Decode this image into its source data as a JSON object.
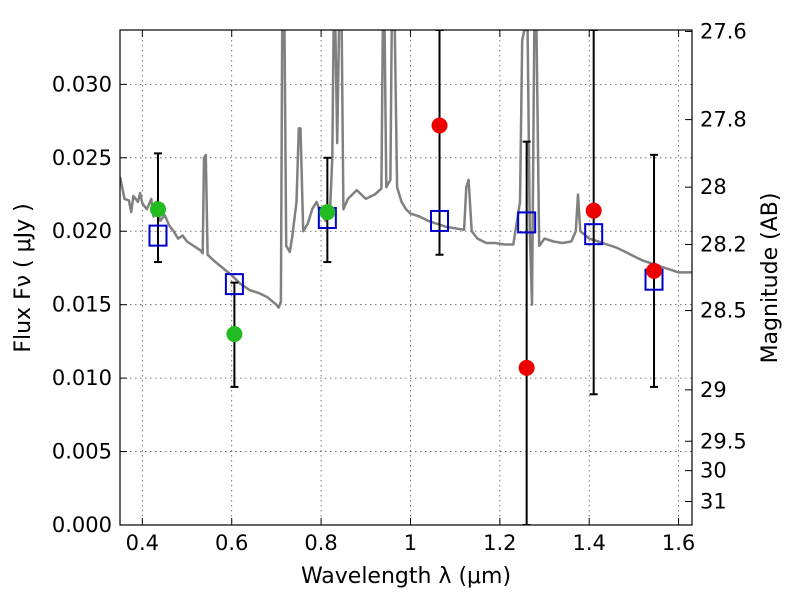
{
  "chart_data": {
    "type": "scatter",
    "xlabel": "Wavelength  λ (μm)",
    "ylabel": "Flux  Fν  ( μJy )",
    "y2label": "Magnitude (AB)",
    "xlim": [
      0.35,
      1.63
    ],
    "ylim": [
      0.0,
      0.0337
    ],
    "grid": true,
    "x_ticks": [
      0.4,
      0.6,
      0.8,
      1.0,
      1.2,
      1.4,
      1.6
    ],
    "x_tick_labels": [
      "0.4",
      "0.6",
      "0.8",
      "1",
      "1.2",
      "1.4",
      "1.6"
    ],
    "y_ticks": [
      0.0,
      0.005,
      0.01,
      0.015,
      0.02,
      0.025,
      0.03
    ],
    "y_tick_labels": [
      "0.000",
      "0.005",
      "0.010",
      "0.015",
      "0.020",
      "0.025",
      "0.030"
    ],
    "y2_ticks": [
      {
        "label": "27.6",
        "flux": 0.0336
      },
      {
        "label": "27.8",
        "flux": 0.0276
      },
      {
        "label": "28",
        "flux": 0.023
      },
      {
        "label": "28.2",
        "flux": 0.0191
      },
      {
        "label": "28.5",
        "flux": 0.0146
      },
      {
        "label": "29",
        "flux": 0.0092
      },
      {
        "label": "29.5",
        "flux": 0.0057
      },
      {
        "label": "30",
        "flux": 0.0037
      },
      {
        "label": "31",
        "flux": 0.0016
      }
    ],
    "colors": {
      "spectrum": "#808080",
      "detected": "#22bb22",
      "measured": "#ee0000",
      "model": "#0000cc",
      "errorbar": "#000000",
      "grid": "#555555"
    },
    "errorbars": [
      {
        "x": 0.435,
        "low": 0.0179,
        "high": 0.0253
      },
      {
        "x": 0.606,
        "low": 0.0094,
        "high": 0.0165
      },
      {
        "x": 0.814,
        "low": 0.0179,
        "high": 0.025
      },
      {
        "x": 1.065,
        "low": 0.0184,
        "high": 0.0337
      },
      {
        "x": 1.26,
        "low": 0.0,
        "high": 0.0261
      },
      {
        "x": 1.41,
        "low": 0.0089,
        "high": 0.0337
      },
      {
        "x": 1.545,
        "low": 0.0094,
        "high": 0.0252
      }
    ],
    "green_points": [
      {
        "x": 0.435,
        "y": 0.0215
      },
      {
        "x": 0.606,
        "y": 0.013
      },
      {
        "x": 0.814,
        "y": 0.0213
      }
    ],
    "red_points": [
      {
        "x": 1.065,
        "y": 0.0272
      },
      {
        "x": 1.26,
        "y": 0.0107
      },
      {
        "x": 1.41,
        "y": 0.0214
      },
      {
        "x": 1.545,
        "y": 0.0173
      }
    ],
    "model_squares": [
      {
        "x": 0.435,
        "y": 0.0197
      },
      {
        "x": 0.606,
        "y": 0.0164
      },
      {
        "x": 0.814,
        "y": 0.0209
      },
      {
        "x": 1.065,
        "y": 0.0207
      },
      {
        "x": 1.26,
        "y": 0.0206
      },
      {
        "x": 1.41,
        "y": 0.0198
      },
      {
        "x": 1.545,
        "y": 0.0167
      }
    ],
    "spectrum": [
      [
        0.35,
        0.0237
      ],
      [
        0.355,
        0.023
      ],
      [
        0.36,
        0.0222
      ],
      [
        0.37,
        0.0221
      ],
      [
        0.375,
        0.0213
      ],
      [
        0.38,
        0.0224
      ],
      [
        0.39,
        0.022
      ],
      [
        0.395,
        0.0226
      ],
      [
        0.4,
        0.0219
      ],
      [
        0.41,
        0.0215
      ],
      [
        0.42,
        0.0222
      ],
      [
        0.425,
        0.021
      ],
      [
        0.43,
        0.022
      ],
      [
        0.44,
        0.0207
      ],
      [
        0.45,
        0.0211
      ],
      [
        0.46,
        0.0204
      ],
      [
        0.47,
        0.02
      ],
      [
        0.48,
        0.0195
      ],
      [
        0.49,
        0.0197
      ],
      [
        0.5,
        0.0193
      ],
      [
        0.51,
        0.0191
      ],
      [
        0.52,
        0.0189
      ],
      [
        0.53,
        0.0187
      ],
      [
        0.535,
        0.0185
      ],
      [
        0.538,
        0.025
      ],
      [
        0.542,
        0.0252
      ],
      [
        0.546,
        0.0184
      ],
      [
        0.56,
        0.018
      ],
      [
        0.58,
        0.0175
      ],
      [
        0.6,
        0.017
      ],
      [
        0.62,
        0.0164
      ],
      [
        0.64,
        0.016
      ],
      [
        0.66,
        0.0158
      ],
      [
        0.68,
        0.0155
      ],
      [
        0.7,
        0.015
      ],
      [
        0.705,
        0.0148
      ],
      [
        0.71,
        0.0152
      ],
      [
        0.713,
        0.0337
      ],
      [
        0.718,
        0.0337
      ],
      [
        0.722,
        0.019
      ],
      [
        0.73,
        0.0186
      ],
      [
        0.735,
        0.0195
      ],
      [
        0.745,
        0.022
      ],
      [
        0.75,
        0.027
      ],
      [
        0.754,
        0.027
      ],
      [
        0.76,
        0.02
      ],
      [
        0.77,
        0.0205
      ],
      [
        0.78,
        0.0215
      ],
      [
        0.79,
        0.022
      ],
      [
        0.8,
        0.0212
      ],
      [
        0.81,
        0.0207
      ],
      [
        0.82,
        0.0213
      ],
      [
        0.825,
        0.025
      ],
      [
        0.828,
        0.0337
      ],
      [
        0.832,
        0.0337
      ],
      [
        0.836,
        0.026
      ],
      [
        0.84,
        0.0337
      ],
      [
        0.846,
        0.0337
      ],
      [
        0.85,
        0.0215
      ],
      [
        0.86,
        0.0222
      ],
      [
        0.88,
        0.0228
      ],
      [
        0.9,
        0.0222
      ],
      [
        0.92,
        0.0225
      ],
      [
        0.935,
        0.0229
      ],
      [
        0.938,
        0.0337
      ],
      [
        0.942,
        0.0337
      ],
      [
        0.946,
        0.023
      ],
      [
        0.955,
        0.0235
      ],
      [
        0.958,
        0.0337
      ],
      [
        0.965,
        0.0337
      ],
      [
        0.97,
        0.023
      ],
      [
        0.98,
        0.022
      ],
      [
        0.99,
        0.0215
      ],
      [
        1.0,
        0.0212
      ],
      [
        1.02,
        0.021
      ],
      [
        1.04,
        0.0207
      ],
      [
        1.06,
        0.0205
      ],
      [
        1.08,
        0.0203
      ],
      [
        1.1,
        0.0202
      ],
      [
        1.12,
        0.0201
      ],
      [
        1.125,
        0.023
      ],
      [
        1.13,
        0.0235
      ],
      [
        1.137,
        0.02
      ],
      [
        1.15,
        0.0195
      ],
      [
        1.17,
        0.0192
      ],
      [
        1.19,
        0.0192
      ],
      [
        1.21,
        0.0191
      ],
      [
        1.23,
        0.0191
      ],
      [
        1.245,
        0.022
      ],
      [
        1.25,
        0.033
      ],
      [
        1.255,
        0.0337
      ],
      [
        1.262,
        0.0337
      ],
      [
        1.267,
        0.02
      ],
      [
        1.272,
        0.015
      ],
      [
        1.277,
        0.0337
      ],
      [
        1.282,
        0.0337
      ],
      [
        1.288,
        0.019
      ],
      [
        1.3,
        0.0195
      ],
      [
        1.32,
        0.0193
      ],
      [
        1.34,
        0.0192
      ],
      [
        1.36,
        0.0193
      ],
      [
        1.37,
        0.02
      ],
      [
        1.375,
        0.0225
      ],
      [
        1.38,
        0.02
      ],
      [
        1.4,
        0.0195
      ],
      [
        1.42,
        0.0193
      ],
      [
        1.44,
        0.0191
      ],
      [
        1.46,
        0.0189
      ],
      [
        1.48,
        0.0186
      ],
      [
        1.5,
        0.0183
      ],
      [
        1.52,
        0.018
      ],
      [
        1.54,
        0.0178
      ],
      [
        1.56,
        0.0176
      ],
      [
        1.58,
        0.0174
      ],
      [
        1.6,
        0.0172
      ],
      [
        1.63,
        0.0172
      ]
    ]
  }
}
